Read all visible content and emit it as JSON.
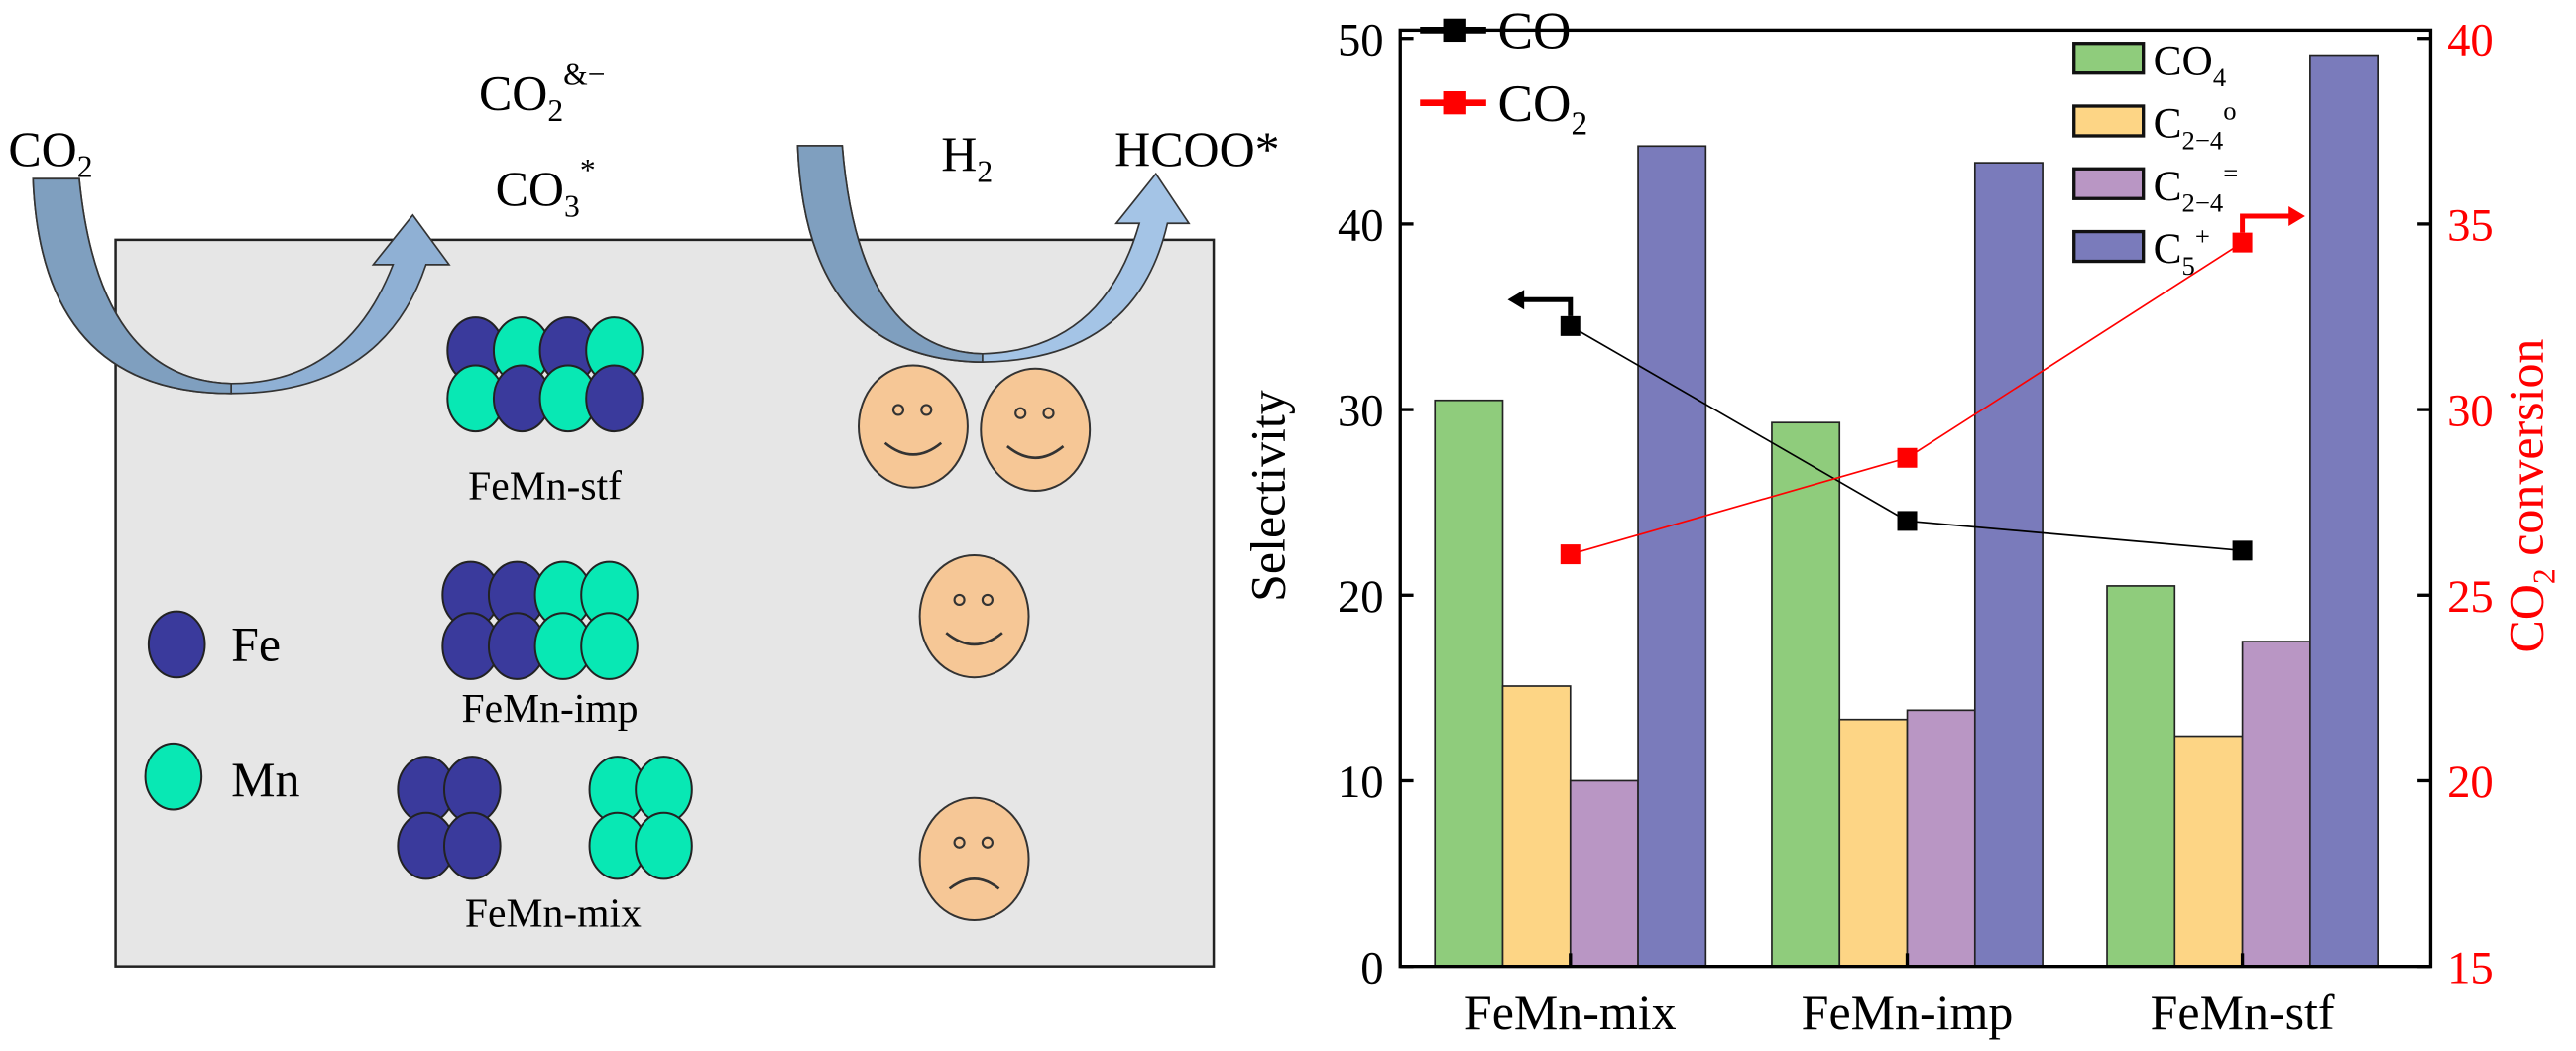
{
  "scheme": {
    "co2_label": "CO",
    "co2_sub": "2",
    "adsorbed_top": {
      "base": "CO",
      "sub": "2",
      "sup": "&−"
    },
    "adsorbed_bottom": {
      "base": "CO",
      "sub": "3",
      "sup": "*"
    },
    "h2_label": {
      "base": "H",
      "sub": "2"
    },
    "hcoo_label": "HCOO*",
    "legend_fe": "Fe",
    "legend_mn": "Mn",
    "samples": [
      {
        "label": "FeMn-stf",
        "face": "happy",
        "faces": 2
      },
      {
        "label": "FeMn-imp",
        "face": "happy",
        "faces": 1
      },
      {
        "label": "FeMn-mix",
        "face": "sad",
        "faces": 1
      }
    ],
    "colors": {
      "fe": "#3a3a9c",
      "mn": "#08e8b4",
      "panel": "#e6e6e6",
      "face": "#f6c796",
      "arrow_dark": "#7f9fbf",
      "arrow_light": "#a4c4e6"
    }
  },
  "chart_data": {
    "type": "bar",
    "categories": [
      "FeMn-mix",
      "FeMn-imp",
      "FeMn-stf"
    ],
    "ylabel": "Selectivity",
    "ylim": [
      0,
      50
    ],
    "yticks": [
      "0",
      "10",
      "20",
      "30",
      "40",
      "50"
    ],
    "y2label": {
      "base": "CO",
      "sub": "2",
      "rest": " conversion"
    },
    "y2lim": [
      15,
      40
    ],
    "y2ticks": [
      "15",
      "20",
      "25",
      "30",
      "35",
      "40"
    ],
    "grid": false,
    "series": [
      {
        "name": {
          "base": "CO",
          "sub": "4",
          "sup": ""
        },
        "color": "#8fcc7c",
        "values": [
          30.5,
          29.3,
          20.5
        ]
      },
      {
        "name": {
          "base": "C",
          "sub": "2−4",
          "sup": "o"
        },
        "color": "#fdd585",
        "values": [
          15.1,
          13.3,
          12.4
        ]
      },
      {
        "name": {
          "base": "C",
          "sub": "2−4",
          "sup": "="
        },
        "color": "#b996c4",
        "values": [
          10.0,
          13.8,
          17.5
        ]
      },
      {
        "name": {
          "base": "C",
          "sub": "5",
          "sup": "+"
        },
        "color": "#7a7bbb",
        "values": [
          44.2,
          43.3,
          49.1
        ]
      }
    ],
    "lines": [
      {
        "name": {
          "base": "CO",
          "sub": ""
        },
        "axis": "left",
        "color": "#000000",
        "values": [
          34.5,
          24.0,
          22.4
        ]
      },
      {
        "name": {
          "base": "CO",
          "sub": "2"
        },
        "axis": "right",
        "color": "#ff0000",
        "values": [
          26.1,
          28.7,
          34.5
        ]
      }
    ],
    "legend_placement": "top"
  }
}
